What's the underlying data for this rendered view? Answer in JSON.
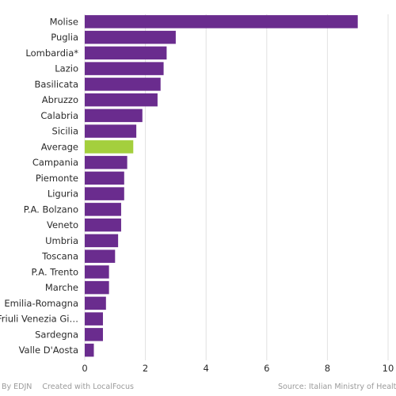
{
  "chart_data": {
    "type": "bar",
    "orientation": "horizontal",
    "title": "",
    "xlabel": "",
    "ylabel": "",
    "xlim": [
      0,
      10
    ],
    "x_ticks": [
      0,
      2,
      4,
      6,
      8,
      10
    ],
    "grid": true,
    "categories": [
      "Molise",
      "Puglia",
      "Lombardia*",
      "Lazio",
      "Basilicata",
      "Abruzzo",
      "Calabria",
      "Sicilia",
      "Average",
      "Campania",
      "Piemonte",
      "Liguria",
      "P.A. Bolzano",
      "Veneto",
      "Umbria",
      "Toscana",
      "P.A. Trento",
      "Marche",
      "Emilia-Romagna",
      "Friuli Venezia Gi…",
      "Sardegna",
      "Valle D'Aosta"
    ],
    "values": [
      9.0,
      3.0,
      2.7,
      2.6,
      2.5,
      2.4,
      1.9,
      1.7,
      1.6,
      1.4,
      1.3,
      1.3,
      1.2,
      1.2,
      1.1,
      1.0,
      0.8,
      0.8,
      0.7,
      0.6,
      0.6,
      0.3
    ],
    "highlight_category": "Average",
    "colors": {
      "bar": "#6a2c8e",
      "highlight": "#a4cf3d",
      "grid": "#e2e2e2",
      "label": "#2b2b2b"
    }
  },
  "footer": {
    "by": "By EDJN",
    "created": "Created with LocalFocus",
    "source": "Source: Italian Ministry of Health"
  }
}
